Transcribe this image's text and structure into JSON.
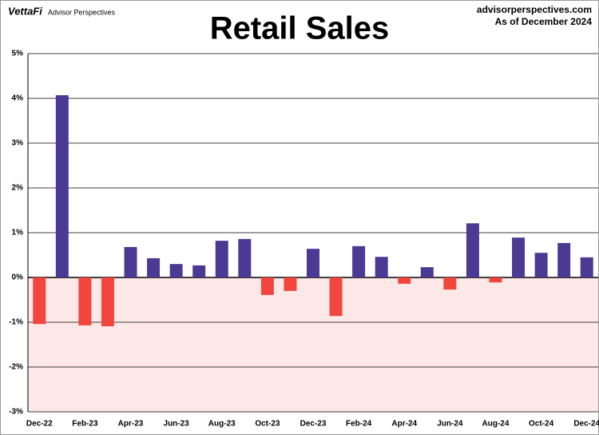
{
  "chart_data": {
    "type": "bar",
    "title": "Retail Sales",
    "logo": "VettaFi",
    "logo_subtitle": "Advisor Perspectives",
    "source": "advisorperspectives.com",
    "date_note": "As of December 2024",
    "categories": [
      "Dec-22",
      null,
      "Feb-23",
      null,
      "Apr-23",
      null,
      "Jun-23",
      null,
      "Aug-23",
      null,
      "Oct-23",
      null,
      "Dec-23",
      null,
      "Feb-24",
      null,
      "Apr-24",
      null,
      "Jun-24",
      null,
      "Aug-24",
      null,
      "Oct-24",
      null,
      "Dec-24"
    ],
    "values": [
      -1.04,
      4.07,
      -1.07,
      -1.09,
      0.68,
      0.43,
      0.3,
      0.27,
      0.82,
      0.86,
      -0.39,
      -0.3,
      0.64,
      -0.86,
      0.7,
      0.46,
      -0.14,
      0.23,
      -0.27,
      1.21,
      -0.11,
      0.89,
      0.55,
      0.77,
      0.45
    ],
    "positive_color": "#4b3a93",
    "negative_color": "#f2453d",
    "negative_region_color": "#fde8e8",
    "ylim": [
      -3,
      5
    ],
    "yticks": [
      {
        "value": -3,
        "label": "-3%"
      },
      {
        "value": -2,
        "label": "-2%"
      },
      {
        "value": -1,
        "label": "-1%"
      },
      {
        "value": 0,
        "label": "0%"
      },
      {
        "value": 1,
        "label": "1%"
      },
      {
        "value": 2,
        "label": "2%"
      },
      {
        "value": 3,
        "label": "3%"
      },
      {
        "value": 4,
        "label": "4%"
      },
      {
        "value": 5,
        "label": "5%"
      }
    ],
    "grid": true
  }
}
